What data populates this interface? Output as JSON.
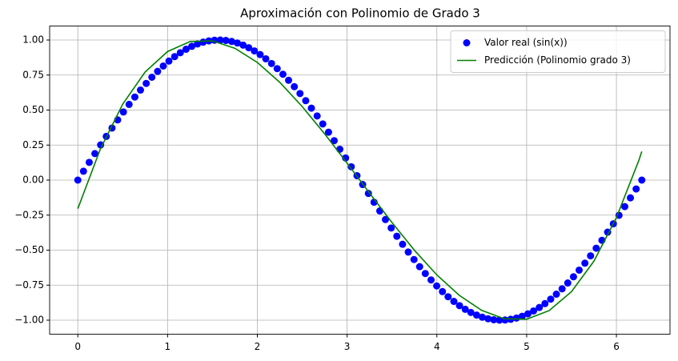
{
  "chart_data": {
    "type": "scatter",
    "title": "Aproximación con Polinomio de Grado 3",
    "series": [
      {
        "name": "Valor real (sin(x))",
        "type": "scatter",
        "color": "#0000ff",
        "x": [
          0,
          0.063,
          0.127,
          0.19,
          0.254,
          0.317,
          0.381,
          0.444,
          0.508,
          0.571,
          0.635,
          0.698,
          0.762,
          0.825,
          0.889,
          0.952,
          1.015,
          1.079,
          1.142,
          1.206,
          1.269,
          1.333,
          1.396,
          1.46,
          1.523,
          1.587,
          1.65,
          1.714,
          1.777,
          1.841,
          1.904,
          1.967,
          2.031,
          2.094,
          2.158,
          2.221,
          2.285,
          2.348,
          2.412,
          2.475,
          2.539,
          2.602,
          2.666,
          2.729,
          2.793,
          2.856,
          2.919,
          2.983,
          3.046,
          3.11,
          3.173,
          3.237,
          3.3,
          3.364,
          3.427,
          3.491,
          3.554,
          3.618,
          3.681,
          3.745,
          3.808,
          3.871,
          3.935,
          3.998,
          4.062,
          4.125,
          4.189,
          4.252,
          4.316,
          4.379,
          4.443,
          4.506,
          4.57,
          4.633,
          4.697,
          4.76,
          4.823,
          4.887,
          4.95,
          5.014,
          5.077,
          5.141,
          5.204,
          5.268,
          5.331,
          5.395,
          5.458,
          5.522,
          5.585,
          5.649,
          5.712,
          5.775,
          5.839,
          5.902,
          5.966,
          6.029,
          6.093,
          6.156,
          6.22,
          6.283
        ],
        "values": [
          0,
          0.0634,
          0.1266,
          0.1893,
          0.2511,
          0.312,
          0.3717,
          0.4298,
          0.4862,
          0.5406,
          0.5929,
          0.6428,
          0.6901,
          0.7346,
          0.7761,
          0.8146,
          0.8497,
          0.8815,
          0.9096,
          0.9342,
          0.9549,
          0.9718,
          0.9848,
          0.9938,
          0.9989,
          0.9999,
          0.9969,
          0.9898,
          0.9788,
          0.9638,
          0.945,
          0.9224,
          0.8961,
          0.866,
          0.8325,
          0.7958,
          0.7557,
          0.7127,
          0.6668,
          0.6182,
          0.5671,
          0.5137,
          0.4582,
          0.4009,
          0.342,
          0.2817,
          0.2203,
          0.158,
          0.0951,
          0.0317,
          -0.0317,
          -0.0951,
          -0.158,
          -0.2203,
          -0.2817,
          -0.342,
          -0.4009,
          -0.4582,
          -0.5137,
          -0.5671,
          -0.6182,
          -0.6668,
          -0.7127,
          -0.7557,
          -0.7958,
          -0.8325,
          -0.866,
          -0.8961,
          -0.9224,
          -0.945,
          -0.9638,
          -0.9788,
          -0.9898,
          -0.9969,
          -0.9999,
          -0.9989,
          -0.9938,
          -0.9848,
          -0.9718,
          -0.9549,
          -0.9342,
          -0.9096,
          -0.8815,
          -0.8497,
          -0.8146,
          -0.7761,
          -0.7346,
          -0.6901,
          -0.6428,
          -0.5929,
          -0.5406,
          -0.4862,
          -0.4298,
          -0.3717,
          -0.312,
          -0.2511,
          -0.1893,
          -0.1266,
          -0.0634,
          0
        ]
      },
      {
        "name": "Predicción (Polinomio grado 3)",
        "type": "line",
        "color": "#008000",
        "x": [
          0,
          0.25,
          0.5,
          0.75,
          1,
          1.25,
          1.5,
          1.75,
          2,
          2.25,
          2.5,
          2.75,
          3,
          3.25,
          3.5,
          3.75,
          4,
          4.25,
          4.5,
          4.75,
          5,
          5.25,
          5.5,
          5.75,
          6,
          6.25,
          6.283
        ],
        "values": [
          -0.204,
          0.22,
          0.542,
          0.772,
          0.918,
          0.989,
          0.994,
          0.941,
          0.84,
          0.698,
          0.525,
          0.33,
          0.121,
          -0.093,
          -0.303,
          -0.501,
          -0.677,
          -0.823,
          -0.93,
          -0.99,
          -0.993,
          -0.932,
          -0.796,
          -0.578,
          -0.268,
          0.141,
          0.204
        ]
      }
    ],
    "xlim": [
      -0.314,
      6.597
    ],
    "xticks": [
      0,
      1,
      2,
      3,
      4,
      5,
      6
    ],
    "ylim": [
      -1.1,
      1.1
    ],
    "yticks": [
      {
        "value": -1,
        "label": "−1.00"
      },
      {
        "value": -0.75,
        "label": "−0.75"
      },
      {
        "value": -0.5,
        "label": "−0.50"
      },
      {
        "value": -0.25,
        "label": "−0.25"
      },
      {
        "value": 0,
        "label": "0.00"
      },
      {
        "value": 0.25,
        "label": "0.25"
      },
      {
        "value": 0.5,
        "label": "0.50"
      },
      {
        "value": 0.75,
        "label": "0.75"
      },
      {
        "value": 1,
        "label": "1.00"
      }
    ],
    "grid": true,
    "legend": "upper right"
  }
}
